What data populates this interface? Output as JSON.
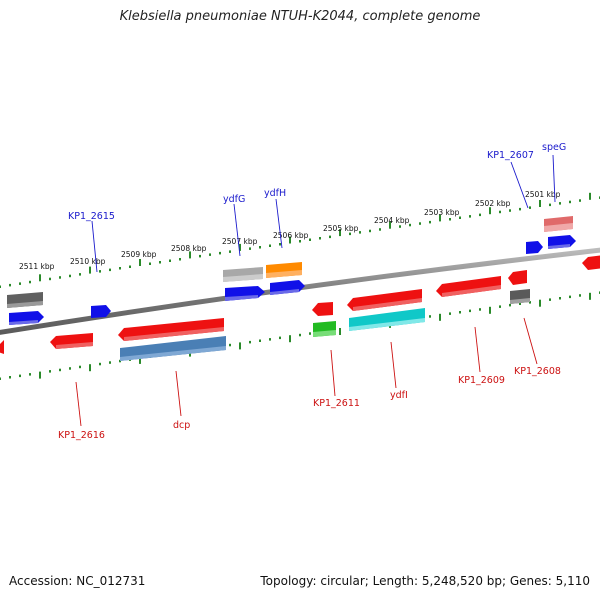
{
  "title": "Klebsiella pneumoniae NTUH-K2044, complete genome",
  "footer": {
    "accession": "Accession: NC_012731",
    "topology": "Topology: circular; Length: 5,248,520 bp; Genes: 5,110"
  },
  "colors": {
    "backbone": "#808080",
    "scale": "#2a8a2a",
    "forward_label": "#1a1acc",
    "reverse_label": "#cc1111"
  },
  "scale": {
    "unit": "kbp",
    "ticks": [
      "2511 kbp",
      "2510 kbp",
      "2509 kbp",
      "2508 kbp",
      "2507 kbp",
      "2506 kbp",
      "2505 kbp",
      "2504 kbp",
      "2503 kbp",
      "2502 kbp",
      "2501 kbp"
    ]
  },
  "genes": [
    {
      "name": "KP1_2615",
      "strand": "+",
      "color": "#0a0ae0"
    },
    {
      "name": "ydfG",
      "strand": "+",
      "color": "#0a0ae0"
    },
    {
      "name": "ydfH",
      "strand": "+",
      "color": "#0a0ae0"
    },
    {
      "name": "KP1_2607",
      "strand": "+",
      "color": "#0a0ae0"
    },
    {
      "name": "speG",
      "strand": "+",
      "color": "#0a0ae0"
    },
    {
      "name": "KP1_2616",
      "strand": "-",
      "color": "#ee1111"
    },
    {
      "name": "dcp",
      "strand": "-",
      "color": "#ee1111"
    },
    {
      "name": "KP1_2611",
      "strand": "-",
      "color": "#ee1111"
    },
    {
      "name": "ydfI",
      "strand": "-",
      "color": "#ee1111"
    },
    {
      "name": "KP1_2609",
      "strand": "-",
      "color": "#ee1111"
    },
    {
      "name": "KP1_2608",
      "strand": "-",
      "color": "#ee1111"
    }
  ]
}
